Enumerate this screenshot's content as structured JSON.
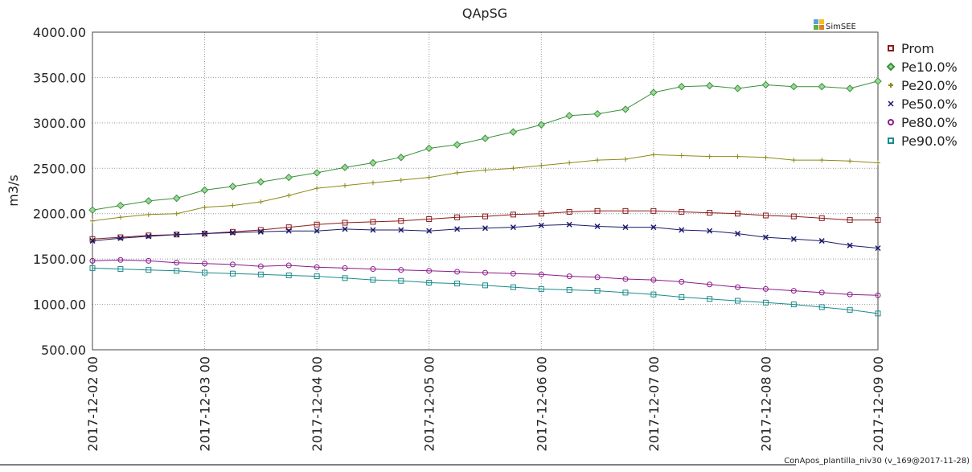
{
  "chart_data": {
    "type": "line",
    "title": "QApSG",
    "ylabel": "m3/s",
    "brand": "SimSEE",
    "footer": "ConApos_plantilla_niv30 (v_169@2017-11-28)",
    "x": [
      "2017-12-02 00",
      "2017-12-02 06",
      "2017-12-02 12",
      "2017-12-02 18",
      "2017-12-03 00",
      "2017-12-03 06",
      "2017-12-03 12",
      "2017-12-03 18",
      "2017-12-04 00",
      "2017-12-04 06",
      "2017-12-04 12",
      "2017-12-04 18",
      "2017-12-05 00",
      "2017-12-05 06",
      "2017-12-05 12",
      "2017-12-05 18",
      "2017-12-06 00",
      "2017-12-06 06",
      "2017-12-06 12",
      "2017-12-06 18",
      "2017-12-07 00",
      "2017-12-07 06",
      "2017-12-07 12",
      "2017-12-07 18",
      "2017-12-08 00",
      "2017-12-08 06",
      "2017-12-08 12",
      "2017-12-08 18",
      "2017-12-09 00"
    ],
    "xlim": [
      "2017-12-02 00",
      "2017-12-09 00"
    ],
    "xticks": [
      "2017-12-02 00",
      "2017-12-03 00",
      "2017-12-04 00",
      "2017-12-05 00",
      "2017-12-06 00",
      "2017-12-07 00",
      "2017-12-08 00",
      "2017-12-09 00"
    ],
    "ylim": [
      500,
      4000
    ],
    "yticks": [
      {
        "value": 500,
        "label": "500.00"
      },
      {
        "value": 1000,
        "label": "1000.00"
      },
      {
        "value": 1500,
        "label": "1500.00"
      },
      {
        "value": 2000,
        "label": "2000.00"
      },
      {
        "value": 2500,
        "label": "2500.00"
      },
      {
        "value": 3000,
        "label": "3000.00"
      },
      {
        "value": 3500,
        "label": "3500.00"
      },
      {
        "value": 4000,
        "label": "4000.00"
      }
    ],
    "grid": true,
    "legend": "right",
    "series": [
      {
        "name": "Prom",
        "color": "#8b1a1a",
        "marker": "square",
        "values": [
          1720,
          1740,
          1760,
          1770,
          1780,
          1800,
          1820,
          1850,
          1880,
          1900,
          1910,
          1920,
          1940,
          1960,
          1970,
          1990,
          2000,
          2020,
          2030,
          2030,
          2030,
          2020,
          2010,
          2000,
          1980,
          1970,
          1950,
          1930,
          1930
        ]
      },
      {
        "name": "Pe10.0%",
        "color": "#3a8f3a",
        "marker": "diamond",
        "values": [
          2040,
          2090,
          2140,
          2170,
          2260,
          2300,
          2350,
          2400,
          2450,
          2510,
          2560,
          2620,
          2720,
          2760,
          2830,
          2900,
          2980,
          3080,
          3100,
          3150,
          3335,
          3400,
          3410,
          3380,
          3420,
          3400,
          3400,
          3380,
          3460
        ]
      },
      {
        "name": "Pe20.0%",
        "color": "#8b8b1a",
        "marker": "plus",
        "values": [
          1920,
          1960,
          1990,
          2000,
          2070,
          2090,
          2130,
          2200,
          2280,
          2310,
          2340,
          2370,
          2400,
          2450,
          2480,
          2500,
          2530,
          2560,
          2590,
          2600,
          2650,
          2640,
          2630,
          2630,
          2620,
          2590,
          2590,
          2580,
          2560
        ]
      },
      {
        "name": "Pe50.0%",
        "color": "#1a1a6b",
        "marker": "cross",
        "values": [
          1700,
          1730,
          1750,
          1770,
          1780,
          1790,
          1800,
          1810,
          1810,
          1830,
          1820,
          1820,
          1810,
          1830,
          1840,
          1850,
          1870,
          1880,
          1860,
          1850,
          1850,
          1820,
          1810,
          1780,
          1740,
          1720,
          1700,
          1650,
          1620
        ]
      },
      {
        "name": "Pe80.0%",
        "color": "#8b1a8b",
        "marker": "circle",
        "values": [
          1480,
          1490,
          1480,
          1460,
          1450,
          1440,
          1420,
          1430,
          1410,
          1400,
          1390,
          1380,
          1370,
          1360,
          1350,
          1340,
          1330,
          1310,
          1300,
          1280,
          1270,
          1250,
          1220,
          1190,
          1170,
          1150,
          1130,
          1110,
          1100
        ]
      },
      {
        "name": "Pe90.0%",
        "color": "#1a8b8b",
        "marker": "square",
        "values": [
          1400,
          1390,
          1380,
          1370,
          1350,
          1340,
          1330,
          1320,
          1310,
          1290,
          1270,
          1260,
          1240,
          1230,
          1210,
          1190,
          1170,
          1160,
          1150,
          1130,
          1110,
          1080,
          1060,
          1040,
          1020,
          1000,
          970,
          940,
          900
        ]
      }
    ]
  }
}
